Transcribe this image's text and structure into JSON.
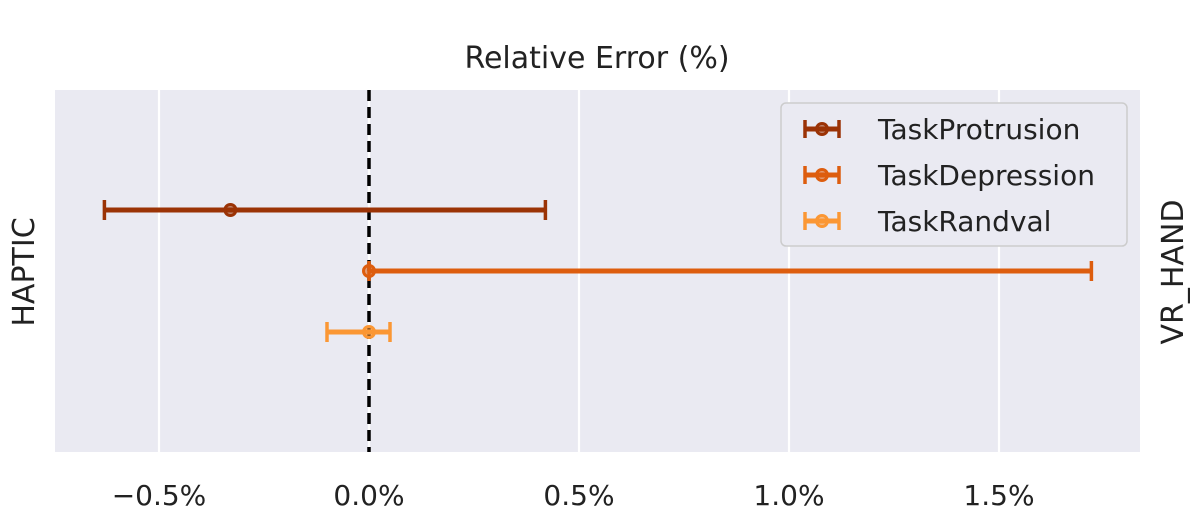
{
  "chart_data": {
    "type": "errorbar",
    "title": "Relative Error (%)",
    "ylabel_left": "HAPTIC",
    "ylabel_right": "VR_HAND",
    "xlim": [
      -0.75,
      1.83
    ],
    "x_ticks": [
      -0.5,
      0.0,
      0.5,
      1.0,
      1.5
    ],
    "x_tick_labels": [
      "−0.5%",
      "0.0%",
      "0.5%",
      "1.0%",
      "1.5%"
    ],
    "reference_line": 0.0,
    "grid": true,
    "legend_position": "top-right",
    "series": [
      {
        "name": "TaskProtrusion",
        "value": -0.33,
        "low": -0.63,
        "high": 0.42,
        "color": "#9b3306"
      },
      {
        "name": "TaskDepression",
        "value": 0.0,
        "low": 0.0,
        "high": 1.72,
        "color": "#dd5d0e"
      },
      {
        "name": "TaskRandval",
        "value": 0.0,
        "low": -0.1,
        "high": 0.05,
        "color": "#fb9734"
      }
    ]
  }
}
